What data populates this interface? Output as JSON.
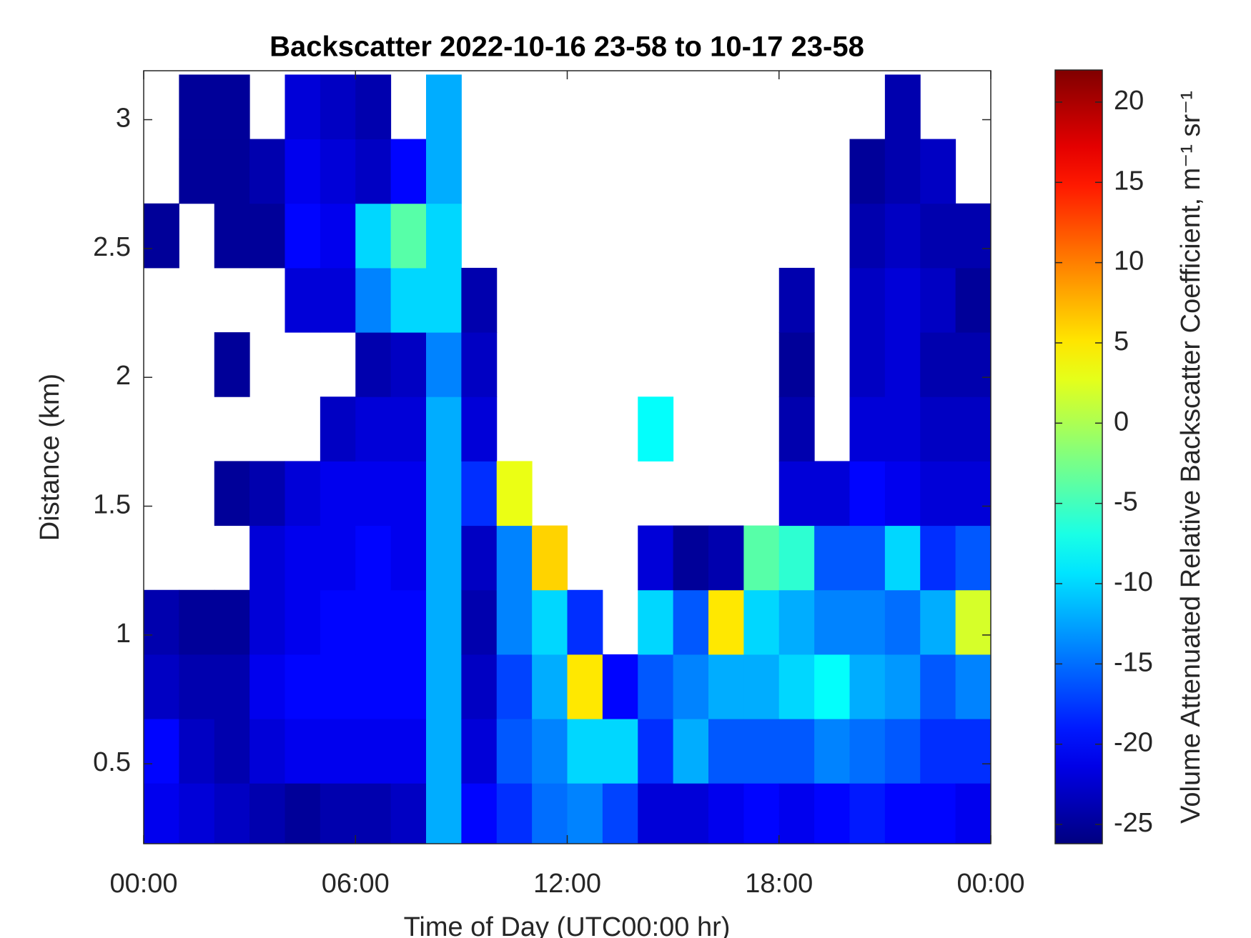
{
  "chart_data": {
    "type": "heatmap",
    "title": "Backscatter 2022-10-16 23-58 to 10-17 23-58",
    "xlabel": "Time of Day (UTC00:00 hr)",
    "ylabel": "Distance (km)",
    "colorbar_label": "Volume Attenuated Relative Backscatter Coefficient, m⁻¹ sr⁻¹",
    "colormap": "jet",
    "xlim": [
      0,
      24
    ],
    "xticks": [
      {
        "value": 0,
        "label": "00:00"
      },
      {
        "value": 6,
        "label": "06:00"
      },
      {
        "value": 12,
        "label": "12:00"
      },
      {
        "value": 18,
        "label": "18:00"
      },
      {
        "value": 24,
        "label": "00:00"
      }
    ],
    "ylim": [
      0.19,
      3.19
    ],
    "yticks": [
      0.5,
      1,
      1.5,
      2,
      2.5,
      3
    ],
    "clim": [
      -26.2,
      22
    ],
    "cticks": [
      -25,
      -20,
      -15,
      -10,
      -5,
      0,
      5,
      10,
      15,
      20
    ],
    "x": [
      0.5,
      1.5,
      2.5,
      3.5,
      4.5,
      5.5,
      6.5,
      7.5,
      8.5,
      9.5,
      10.5,
      11.5,
      12.5,
      13.5,
      14.5,
      15.5,
      16.5,
      17.5,
      18.5,
      19.5,
      20.5,
      21.5,
      22.5,
      23.5
    ],
    "y": [
      0.3,
      0.55,
      0.8,
      1.05,
      1.3,
      1.55,
      1.8,
      2.05,
      2.3,
      2.55,
      2.8,
      3.05
    ],
    "values": [
      [
        -21,
        -20,
        -23,
        -24,
        null,
        null,
        null,
        null,
        null,
        -25,
        null,
        null
      ],
      [
        -22,
        -23,
        -24,
        -25,
        null,
        null,
        null,
        null,
        null,
        null,
        -25,
        -25
      ],
      [
        -23,
        -24,
        -24,
        -25,
        null,
        -25,
        null,
        -25,
        null,
        -25,
        -25,
        -25
      ],
      [
        -24,
        -22,
        -21,
        -22,
        -22,
        -24,
        null,
        null,
        null,
        -25,
        -24,
        null
      ],
      [
        -25,
        -21,
        -20,
        -21,
        -21,
        -22,
        null,
        null,
        -22,
        -20,
        -21,
        -22
      ],
      [
        -24,
        -21,
        -20,
        -20,
        -21,
        -21,
        -23,
        null,
        -22,
        -21,
        -22,
        -23
      ],
      [
        -24,
        -21,
        -20,
        -20,
        -20,
        -21,
        -22,
        -24,
        -14,
        -10,
        -23,
        -24
      ],
      [
        -23,
        -21,
        -20,
        -20,
        -21,
        -21,
        -22,
        -23,
        -10,
        -4,
        -20,
        null
      ],
      [
        -12,
        -12,
        -12,
        -12,
        -12,
        -12,
        -12,
        -14,
        -10,
        -10,
        -12,
        -12
      ],
      [
        -20,
        -22,
        -23,
        -24,
        -23,
        -18,
        -22,
        -23,
        -24,
        null,
        null,
        null
      ],
      [
        -18,
        -16,
        -17,
        -14,
        -14,
        3,
        null,
        null,
        null,
        null,
        null,
        null
      ],
      [
        -15,
        -14,
        -12,
        -10,
        6,
        null,
        null,
        null,
        null,
        null,
        null,
        null
      ],
      [
        -14,
        -10,
        5,
        -18,
        null,
        null,
        null,
        null,
        null,
        null,
        null,
        null
      ],
      [
        -17,
        -10,
        -20,
        null,
        null,
        null,
        null,
        null,
        null,
        null,
        null,
        null
      ],
      [
        -22,
        -18,
        -16,
        -10,
        -22,
        null,
        -8,
        null,
        null,
        null,
        null,
        null
      ],
      [
        -22,
        -12,
        -14,
        -16,
        -25,
        null,
        null,
        null,
        null,
        null,
        null,
        null
      ],
      [
        -21,
        -16,
        -12,
        5,
        -24,
        null,
        null,
        null,
        null,
        null,
        null,
        null
      ],
      [
        -20,
        -16,
        -12,
        -10,
        -4,
        null,
        null,
        null,
        null,
        null,
        null,
        null
      ],
      [
        -21,
        -16,
        -10,
        -12,
        -6,
        -22,
        -24,
        -25,
        -24,
        null,
        null,
        null
      ],
      [
        -20,
        -14,
        -8,
        -14,
        -16,
        -22,
        null,
        null,
        null,
        null,
        null,
        null
      ],
      [
        -19,
        -15,
        -12,
        -14,
        -16,
        -20,
        -22,
        -23,
        -23,
        -24,
        -25,
        null
      ],
      [
        -20,
        -16,
        -13,
        -15,
        -10,
        -21,
        -22,
        -22,
        -22,
        -23,
        -24,
        -24
      ],
      [
        -20,
        -18,
        -16,
        -12,
        -18,
        -22,
        -23,
        -24,
        -23,
        -24,
        -23,
        null
      ],
      [
        -21,
        -18,
        -14,
        2,
        -16,
        -22,
        -23,
        -24,
        -25,
        -24,
        null,
        null
      ]
    ]
  }
}
